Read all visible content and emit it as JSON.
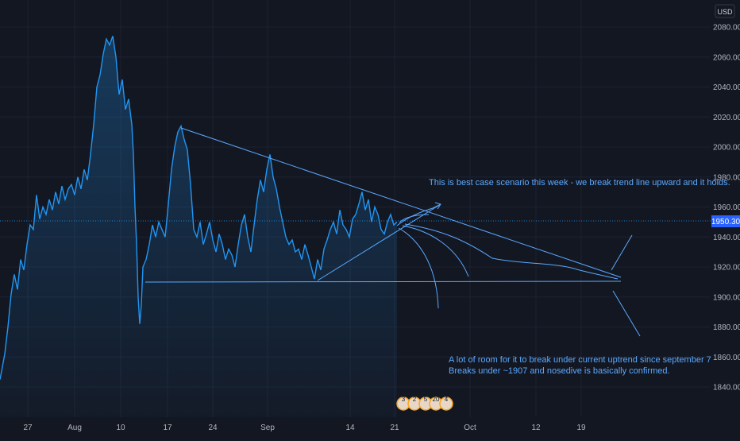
{
  "chart_data": {
    "type": "area",
    "currency": "USD",
    "last_price": "1950.30",
    "ylim": [
      1820,
      2090
    ],
    "y_ticks": [
      "2080.00",
      "2060.00",
      "2040.00",
      "2020.00",
      "2000.00",
      "1980.00",
      "1960.00",
      "1940.00",
      "1920.00",
      "1900.00",
      "1880.00",
      "1860.00",
      "1840.00"
    ],
    "x_ticks": [
      "27",
      "Aug",
      "10",
      "17",
      "24",
      "Sep",
      "14",
      "21",
      "Oct",
      "12",
      "19"
    ],
    "series": [
      {
        "points": [
          [
            0,
            1845
          ],
          [
            6,
            1862
          ],
          [
            10,
            1880
          ],
          [
            14,
            1902
          ],
          [
            18,
            1915
          ],
          [
            22,
            1905
          ],
          [
            26,
            1925
          ],
          [
            30,
            1918
          ],
          [
            34,
            1935
          ],
          [
            38,
            1948
          ],
          [
            42,
            1945
          ],
          [
            46,
            1968
          ],
          [
            50,
            1952
          ],
          [
            54,
            1960
          ],
          [
            58,
            1955
          ],
          [
            62,
            1965
          ],
          [
            66,
            1958
          ],
          [
            70,
            1970
          ],
          [
            74,
            1962
          ],
          [
            78,
            1974
          ],
          [
            82,
            1965
          ],
          [
            86,
            1972
          ],
          [
            90,
            1975
          ],
          [
            94,
            1968
          ],
          [
            98,
            1980
          ],
          [
            102,
            1972
          ],
          [
            106,
            1985
          ],
          [
            110,
            1978
          ],
          [
            114,
            1995
          ],
          [
            118,
            2015
          ],
          [
            122,
            2040
          ],
          [
            126,
            2048
          ],
          [
            130,
            2062
          ],
          [
            134,
            2072
          ],
          [
            138,
            2068
          ],
          [
            142,
            2074
          ],
          [
            146,
            2060
          ],
          [
            150,
            2035
          ],
          [
            154,
            2045
          ],
          [
            158,
            2025
          ],
          [
            162,
            2032
          ],
          [
            166,
            2015
          ],
          [
            168,
            1995
          ],
          [
            170,
            1960
          ],
          [
            172,
            1935
          ],
          [
            174,
            1900
          ],
          [
            176,
            1882
          ],
          [
            178,
            1895
          ],
          [
            180,
            1920
          ],
          [
            184,
            1925
          ],
          [
            188,
            1935
          ],
          [
            192,
            1948
          ],
          [
            196,
            1940
          ],
          [
            200,
            1950
          ],
          [
            204,
            1945
          ],
          [
            208,
            1940
          ],
          [
            212,
            1962
          ],
          [
            216,
            1985
          ],
          [
            220,
            2000
          ],
          [
            224,
            2010
          ],
          [
            228,
            2014
          ],
          [
            232,
            2005
          ],
          [
            236,
            1998
          ],
          [
            240,
            1975
          ],
          [
            244,
            1945
          ],
          [
            248,
            1940
          ],
          [
            252,
            1950
          ],
          [
            256,
            1935
          ],
          [
            260,
            1942
          ],
          [
            264,
            1950
          ],
          [
            268,
            1938
          ],
          [
            272,
            1930
          ],
          [
            276,
            1942
          ],
          [
            280,
            1935
          ],
          [
            284,
            1925
          ],
          [
            288,
            1932
          ],
          [
            292,
            1928
          ],
          [
            296,
            1920
          ],
          [
            300,
            1935
          ],
          [
            304,
            1948
          ],
          [
            308,
            1955
          ],
          [
            312,
            1940
          ],
          [
            316,
            1930
          ],
          [
            320,
            1948
          ],
          [
            324,
            1965
          ],
          [
            328,
            1978
          ],
          [
            332,
            1970
          ],
          [
            336,
            1985
          ],
          [
            340,
            1995
          ],
          [
            344,
            1980
          ],
          [
            348,
            1972
          ],
          [
            352,
            1960
          ],
          [
            356,
            1950
          ],
          [
            360,
            1940
          ],
          [
            364,
            1935
          ],
          [
            368,
            1938
          ],
          [
            372,
            1930
          ],
          [
            376,
            1932
          ],
          [
            380,
            1925
          ],
          [
            384,
            1935
          ],
          [
            388,
            1928
          ],
          [
            392,
            1920
          ],
          [
            396,
            1912
          ],
          [
            400,
            1925
          ],
          [
            404,
            1918
          ],
          [
            408,
            1932
          ],
          [
            412,
            1938
          ],
          [
            416,
            1945
          ],
          [
            420,
            1950
          ],
          [
            424,
            1942
          ],
          [
            428,
            1958
          ],
          [
            432,
            1948
          ],
          [
            436,
            1945
          ],
          [
            440,
            1940
          ],
          [
            444,
            1952
          ],
          [
            448,
            1955
          ],
          [
            452,
            1962
          ],
          [
            456,
            1970
          ],
          [
            460,
            1958
          ],
          [
            464,
            1965
          ],
          [
            468,
            1950
          ],
          [
            472,
            1960
          ],
          [
            476,
            1955
          ],
          [
            480,
            1945
          ],
          [
            484,
            1942
          ],
          [
            488,
            1950
          ],
          [
            492,
            1955
          ],
          [
            496,
            1948
          ],
          [
            500,
            1950
          ]
        ]
      }
    ]
  },
  "annotations": {
    "top_note": "This is best case scenario this week - we break trend line upward and it holds.",
    "bottom_note_line1": "A lot of room for it to break under current uptrend since september 7",
    "bottom_note_line2": "Breaks under ~1907 and nosedive is basically confirmed."
  },
  "events": [
    "3",
    "2",
    "5",
    "20",
    "4"
  ],
  "colors": {
    "background": "#131722",
    "line": "#2196f3",
    "drawing": "#5aa9ff",
    "grid": "#1e2230",
    "label_bg": "#2962ff"
  }
}
